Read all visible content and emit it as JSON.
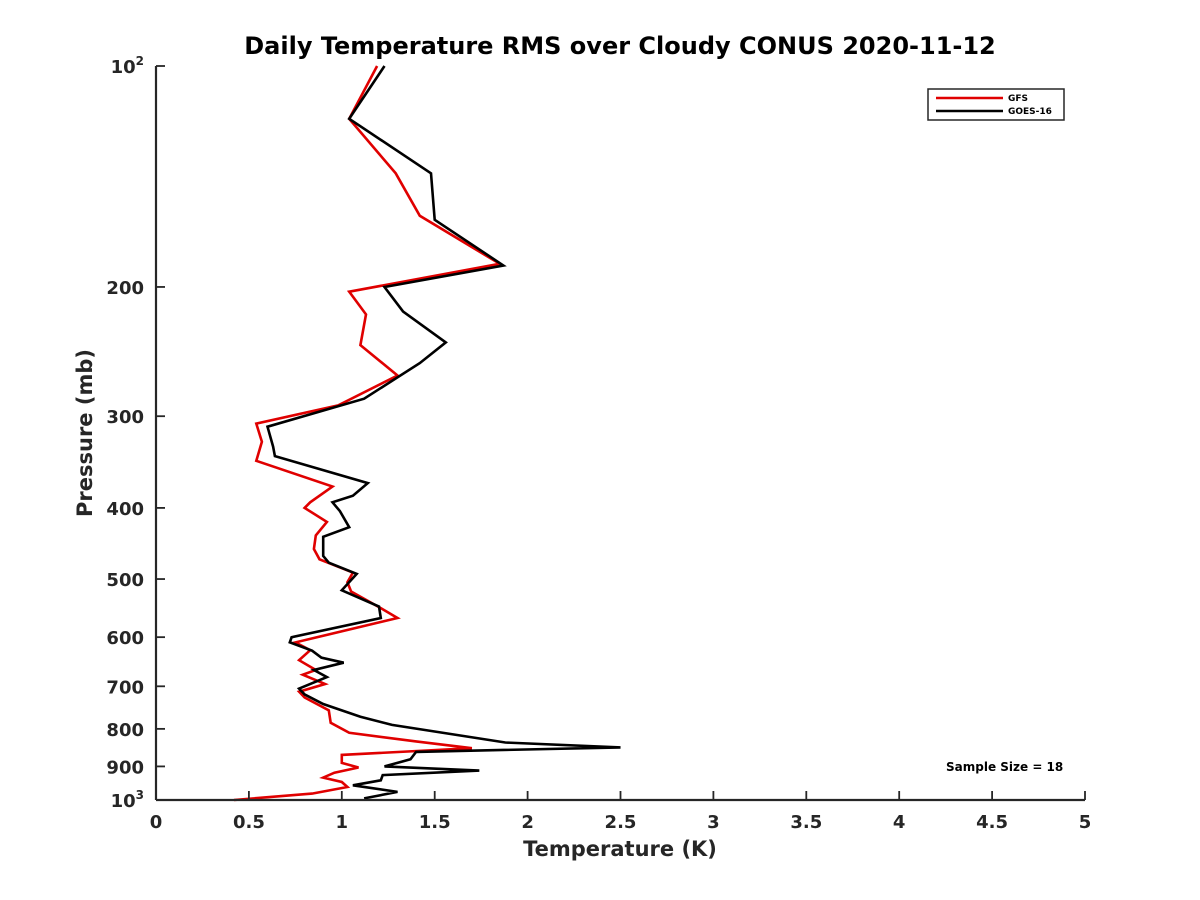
{
  "chart_data": {
    "type": "line",
    "title": "Daily Temperature RMS over Cloudy CONUS 2020-11-12",
    "xlabel": "Temperature (K)",
    "ylabel": "Pressure (mb)",
    "xlim": [
      0,
      5
    ],
    "ylim": [
      100,
      1000
    ],
    "yscale": "log",
    "y_reversed": true,
    "x_ticks": [
      0,
      0.5,
      1,
      1.5,
      2,
      2.5,
      3,
      3.5,
      4,
      4.5,
      5
    ],
    "x_tick_labels": [
      "0",
      "0.5",
      "1",
      "1.5",
      "2",
      "2.5",
      "3",
      "3.5",
      "4",
      "4.5",
      "5"
    ],
    "y_ticks": [
      100,
      200,
      300,
      400,
      500,
      600,
      700,
      800,
      900,
      1000
    ],
    "y_tick_labels": [
      {
        "base": "10",
        "exp": "2"
      },
      {
        "base": "200",
        "exp": ""
      },
      {
        "base": "300",
        "exp": ""
      },
      {
        "base": "400",
        "exp": ""
      },
      {
        "base": "500",
        "exp": ""
      },
      {
        "base": "600",
        "exp": ""
      },
      {
        "base": "700",
        "exp": ""
      },
      {
        "base": "800",
        "exp": ""
      },
      {
        "base": "900",
        "exp": ""
      },
      {
        "base": "10",
        "exp": "3"
      }
    ],
    "legend": {
      "location": "top-right",
      "entries": [
        "GFS",
        "GOES-16"
      ]
    },
    "annotation": "Sample Size = 18",
    "series": [
      {
        "name": "GFS",
        "color": "#e00000",
        "points": [
          [
            1.19,
            100
          ],
          [
            1.04,
            118
          ],
          [
            1.29,
            140
          ],
          [
            1.42,
            160
          ],
          [
            1.85,
            186
          ],
          [
            1.04,
            203
          ],
          [
            1.13,
            218
          ],
          [
            1.1,
            240
          ],
          [
            1.3,
            264
          ],
          [
            0.98,
            290
          ],
          [
            0.54,
            307
          ],
          [
            0.57,
            325
          ],
          [
            0.54,
            345
          ],
          [
            0.95,
            374
          ],
          [
            0.83,
            393
          ],
          [
            0.8,
            400
          ],
          [
            0.92,
            418
          ],
          [
            0.86,
            436
          ],
          [
            0.85,
            455
          ],
          [
            0.88,
            470
          ],
          [
            1.06,
            490
          ],
          [
            1.03,
            505
          ],
          [
            1.05,
            520
          ],
          [
            1.2,
            546
          ],
          [
            1.3,
            565
          ],
          [
            0.75,
            610
          ],
          [
            0.83,
            625
          ],
          [
            0.77,
            645
          ],
          [
            0.86,
            665
          ],
          [
            0.79,
            675
          ],
          [
            0.91,
            695
          ],
          [
            0.77,
            712
          ],
          [
            0.8,
            725
          ],
          [
            0.93,
            755
          ],
          [
            0.94,
            785
          ],
          [
            1.04,
            810
          ],
          [
            1.4,
            832
          ],
          [
            1.7,
            850
          ],
          [
            1.0,
            868
          ],
          [
            1.0,
            890
          ],
          [
            1.09,
            903
          ],
          [
            0.96,
            918
          ],
          [
            0.9,
            932
          ],
          [
            1.0,
            945
          ],
          [
            1.03,
            960
          ],
          [
            0.84,
            980
          ],
          [
            0.42,
            1000
          ]
        ]
      },
      {
        "name": "GOES-16",
        "color": "#000000",
        "points": [
          [
            1.23,
            100
          ],
          [
            1.04,
            118
          ],
          [
            1.48,
            140
          ],
          [
            1.5,
            162
          ],
          [
            1.87,
            187
          ],
          [
            1.23,
            200
          ],
          [
            1.33,
            216
          ],
          [
            1.56,
            238
          ],
          [
            1.42,
            254
          ],
          [
            1.12,
            284
          ],
          [
            0.6,
            310
          ],
          [
            0.63,
            330
          ],
          [
            0.64,
            340
          ],
          [
            1.14,
            370
          ],
          [
            1.06,
            385
          ],
          [
            0.95,
            393
          ],
          [
            0.99,
            404
          ],
          [
            1.04,
            425
          ],
          [
            0.9,
            438
          ],
          [
            0.9,
            465
          ],
          [
            0.93,
            475
          ],
          [
            1.08,
            492
          ],
          [
            1.0,
            518
          ],
          [
            1.2,
            545
          ],
          [
            1.21,
            565
          ],
          [
            0.73,
            600
          ],
          [
            0.72,
            610
          ],
          [
            0.84,
            626
          ],
          [
            0.89,
            640
          ],
          [
            1.01,
            650
          ],
          [
            0.85,
            665
          ],
          [
            0.92,
            680
          ],
          [
            0.77,
            705
          ],
          [
            0.8,
            718
          ],
          [
            0.9,
            740
          ],
          [
            1.1,
            770
          ],
          [
            1.27,
            790
          ],
          [
            1.88,
            835
          ],
          [
            2.5,
            848
          ],
          [
            1.4,
            860
          ],
          [
            1.37,
            880
          ],
          [
            1.23,
            900
          ],
          [
            1.74,
            912
          ],
          [
            1.22,
            925
          ],
          [
            1.21,
            940
          ],
          [
            1.06,
            955
          ],
          [
            1.3,
            975
          ],
          [
            1.12,
            995
          ]
        ]
      }
    ]
  }
}
